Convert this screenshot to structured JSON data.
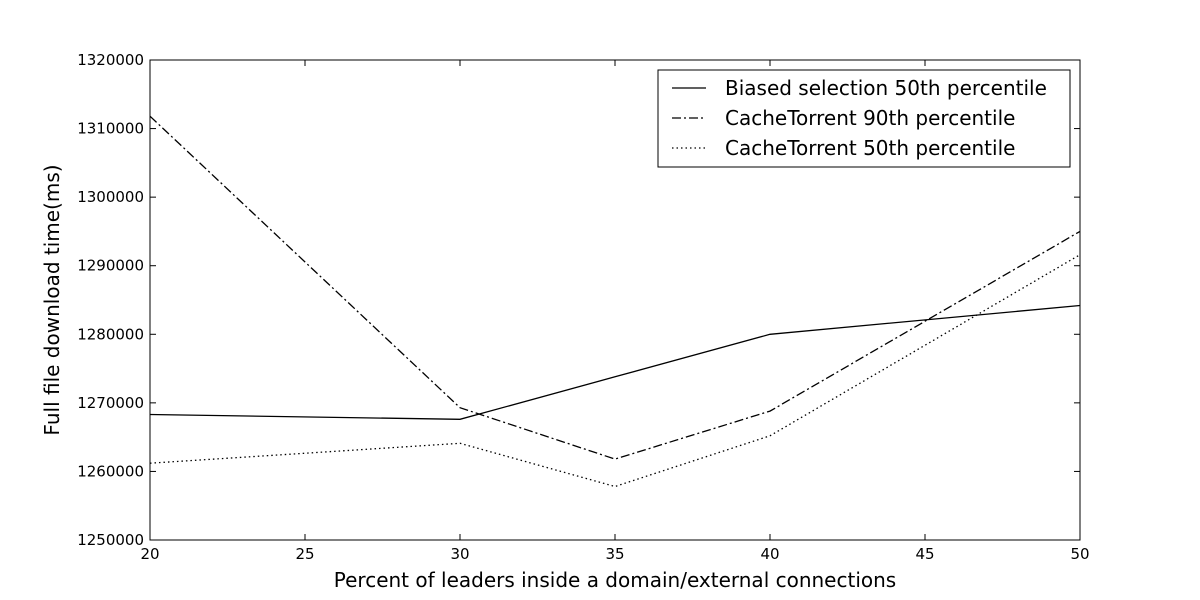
{
  "chart_data": {
    "type": "line",
    "title": "",
    "xlabel": "Percent of leaders inside a domain/external connections",
    "ylabel": "Full file download time(ms)",
    "xlim": [
      20,
      50
    ],
    "ylim": [
      1250000,
      1320000
    ],
    "x_ticks": [
      20,
      25,
      30,
      35,
      40,
      45,
      50
    ],
    "y_ticks": [
      1250000,
      1260000,
      1270000,
      1280000,
      1290000,
      1300000,
      1310000,
      1320000
    ],
    "x_tick_labels": [
      "20",
      "25",
      "30",
      "35",
      "40",
      "45",
      "50"
    ],
    "y_tick_labels": [
      "1250000",
      "1260000",
      "1270000",
      "1280000",
      "1290000",
      "1300000",
      "1310000",
      "1320000"
    ],
    "grid": false,
    "legend_position": "top-right",
    "x": [
      20,
      30,
      35,
      40,
      50
    ],
    "series": [
      {
        "name": "Biased selection 50th percentile",
        "style": "solid",
        "values": [
          1268300,
          1267600,
          1273800,
          1280000,
          1284200
        ]
      },
      {
        "name": "CacheTorrent 90th percentile",
        "style": "dashdot",
        "values": [
          1311800,
          1269300,
          1261800,
          1268800,
          1295000
        ]
      },
      {
        "name": "CacheTorrent 50th percentile",
        "style": "dotted",
        "values": [
          1261200,
          1264100,
          1257800,
          1265200,
          1291600
        ]
      }
    ]
  }
}
